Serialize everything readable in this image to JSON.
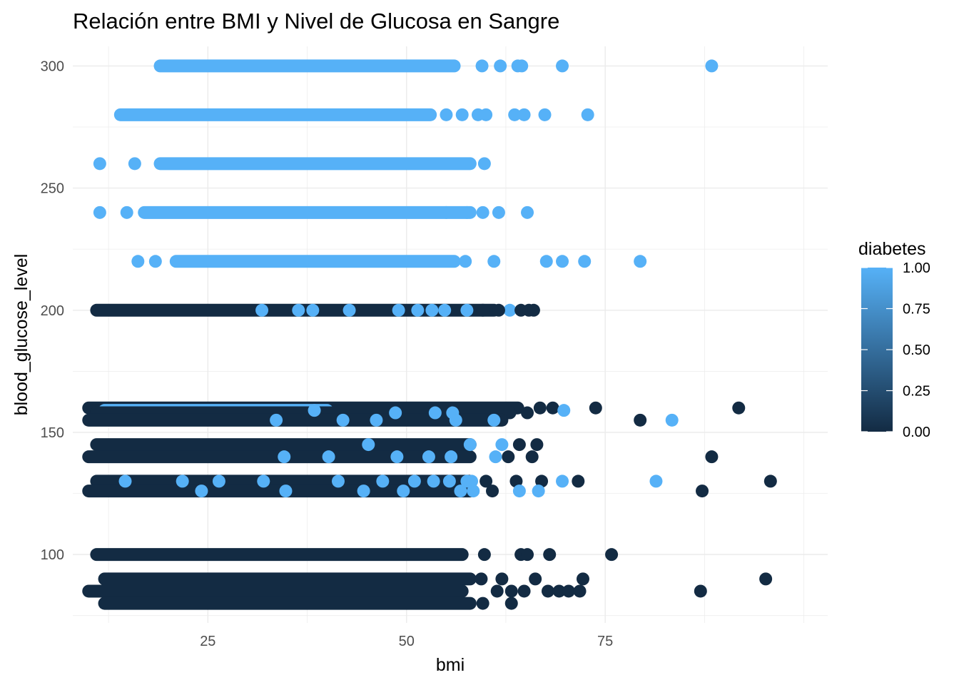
{
  "chart_data": {
    "type": "scatter",
    "title": "Relación entre BMI y Nivel de Glucosa en Sangre",
    "xlabel": "bmi",
    "ylabel": "blood_glucose_level",
    "xlim": [
      8,
      103
    ],
    "ylim": [
      72,
      308
    ],
    "x_ticks": [
      25,
      50,
      75
    ],
    "x_tick_labels": [
      "25",
      "50",
      "75"
    ],
    "y_ticks": [
      100,
      150,
      200,
      250,
      300
    ],
    "y_tick_labels": [
      "100",
      "150",
      "200",
      "250",
      "300"
    ],
    "grid": true,
    "legend": {
      "title": "diabetes",
      "position": "right",
      "type": "continuous",
      "range": [
        0,
        1
      ],
      "ticks": [
        0,
        0.25,
        0.5,
        0.75,
        1
      ],
      "tick_labels": [
        "0.00",
        "0.25",
        "0.50",
        "0.75",
        "1.00"
      ],
      "color_low": "#132B43",
      "color_high": "#56B1F7"
    },
    "colors": {
      "diabetes_0": "#132B43",
      "diabetes_1": "#56B1F7"
    },
    "dense_bands": [
      {
        "y": 300,
        "x_range": [
          19,
          56
        ],
        "diabetes": 1
      },
      {
        "y": 280,
        "x_range": [
          14,
          53
        ],
        "diabetes": 1
      },
      {
        "y": 260,
        "x_range": [
          19,
          58
        ],
        "diabetes": 1
      },
      {
        "y": 240,
        "x_range": [
          17,
          58
        ],
        "diabetes": 1
      },
      {
        "y": 220,
        "x_range": [
          21,
          56
        ],
        "diabetes": 1
      },
      {
        "y": 200,
        "x_range": [
          11,
          61
        ],
        "diabetes": 0
      },
      {
        "y": 160,
        "x_range": [
          10,
          64
        ],
        "diabetes": 0
      },
      {
        "y": 159,
        "x_range": [
          12,
          40
        ],
        "diabetes": 1
      },
      {
        "y": 158,
        "x_range": [
          11,
          63
        ],
        "diabetes": 0
      },
      {
        "y": 155,
        "x_range": [
          10,
          62
        ],
        "diabetes": 0
      },
      {
        "y": 145,
        "x_range": [
          11,
          58
        ],
        "diabetes": 0
      },
      {
        "y": 140,
        "x_range": [
          10,
          58
        ],
        "diabetes": 0
      },
      {
        "y": 130,
        "x_range": [
          11,
          58
        ],
        "diabetes": 0
      },
      {
        "y": 126,
        "x_range": [
          10,
          58
        ],
        "diabetes": 0
      },
      {
        "y": 100,
        "x_range": [
          11,
          57
        ],
        "diabetes": 0
      },
      {
        "y": 90,
        "x_range": [
          12,
          58
        ],
        "diabetes": 0
      },
      {
        "y": 85,
        "x_range": [
          10,
          57
        ],
        "diabetes": 0
      },
      {
        "y": 80,
        "x_range": [
          12,
          58
        ],
        "diabetes": 0
      }
    ],
    "points": [
      {
        "x": 59.5,
        "y": 300,
        "diabetes": 1
      },
      {
        "x": 61.8,
        "y": 300,
        "diabetes": 1
      },
      {
        "x": 64,
        "y": 300,
        "diabetes": 1
      },
      {
        "x": 64.5,
        "y": 300,
        "diabetes": 1
      },
      {
        "x": 69.6,
        "y": 300,
        "diabetes": 1
      },
      {
        "x": 88.4,
        "y": 300,
        "diabetes": 1
      },
      {
        "x": 55,
        "y": 280,
        "diabetes": 1
      },
      {
        "x": 57,
        "y": 280,
        "diabetes": 1
      },
      {
        "x": 59,
        "y": 280,
        "diabetes": 1
      },
      {
        "x": 60,
        "y": 280,
        "diabetes": 1
      },
      {
        "x": 63.6,
        "y": 280,
        "diabetes": 1
      },
      {
        "x": 64.8,
        "y": 280,
        "diabetes": 1
      },
      {
        "x": 67.4,
        "y": 280,
        "diabetes": 1
      },
      {
        "x": 72.8,
        "y": 280,
        "diabetes": 1
      },
      {
        "x": 59.8,
        "y": 260,
        "diabetes": 1
      },
      {
        "x": 11.4,
        "y": 260,
        "diabetes": 1
      },
      {
        "x": 15.8,
        "y": 260,
        "diabetes": 1
      },
      {
        "x": 11.4,
        "y": 240,
        "diabetes": 1
      },
      {
        "x": 14.8,
        "y": 240,
        "diabetes": 1
      },
      {
        "x": 55,
        "y": 240,
        "diabetes": 1
      },
      {
        "x": 57.6,
        "y": 240,
        "diabetes": 1
      },
      {
        "x": 59.6,
        "y": 240,
        "diabetes": 1
      },
      {
        "x": 61.6,
        "y": 240,
        "diabetes": 1
      },
      {
        "x": 65.2,
        "y": 240,
        "diabetes": 1
      },
      {
        "x": 16.2,
        "y": 220,
        "diabetes": 1
      },
      {
        "x": 18.4,
        "y": 220,
        "diabetes": 1
      },
      {
        "x": 57.4,
        "y": 220,
        "diabetes": 1
      },
      {
        "x": 61,
        "y": 220,
        "diabetes": 1
      },
      {
        "x": 67.6,
        "y": 220,
        "diabetes": 1
      },
      {
        "x": 69.6,
        "y": 220,
        "diabetes": 1
      },
      {
        "x": 72.4,
        "y": 220,
        "diabetes": 1
      },
      {
        "x": 79.4,
        "y": 220,
        "diabetes": 1
      },
      {
        "x": 38.2,
        "y": 200,
        "diabetes": 1
      },
      {
        "x": 53.2,
        "y": 200,
        "diabetes": 1
      },
      {
        "x": 57.6,
        "y": 200,
        "diabetes": 1
      },
      {
        "x": 63,
        "y": 200,
        "diabetes": 1
      },
      {
        "x": 59.6,
        "y": 200,
        "diabetes": 0
      },
      {
        "x": 61.6,
        "y": 200,
        "diabetes": 0
      },
      {
        "x": 64.4,
        "y": 200,
        "diabetes": 0
      },
      {
        "x": 65.4,
        "y": 200,
        "diabetes": 0
      },
      {
        "x": 66,
        "y": 200,
        "diabetes": 0
      },
      {
        "x": 66.8,
        "y": 160,
        "diabetes": 0
      },
      {
        "x": 68.4,
        "y": 160,
        "diabetes": 0
      },
      {
        "x": 69.8,
        "y": 159,
        "diabetes": 1
      },
      {
        "x": 73.8,
        "y": 160,
        "diabetes": 0
      },
      {
        "x": 79.4,
        "y": 155,
        "diabetes": 0
      },
      {
        "x": 83.4,
        "y": 155,
        "diabetes": 1
      },
      {
        "x": 91.8,
        "y": 160,
        "diabetes": 0
      },
      {
        "x": 65.2,
        "y": 158,
        "diabetes": 0
      },
      {
        "x": 61,
        "y": 155,
        "diabetes": 1
      },
      {
        "x": 56.2,
        "y": 155,
        "diabetes": 1
      },
      {
        "x": 58,
        "y": 145,
        "diabetes": 1
      },
      {
        "x": 62,
        "y": 145,
        "diabetes": 1
      },
      {
        "x": 64.2,
        "y": 145,
        "diabetes": 0
      },
      {
        "x": 66.4,
        "y": 145,
        "diabetes": 0
      },
      {
        "x": 62.8,
        "y": 140,
        "diabetes": 0
      },
      {
        "x": 65.8,
        "y": 140,
        "diabetes": 0
      },
      {
        "x": 61.2,
        "y": 140,
        "diabetes": 1
      },
      {
        "x": 88.4,
        "y": 140,
        "diabetes": 0
      },
      {
        "x": 60,
        "y": 130,
        "diabetes": 0
      },
      {
        "x": 63.8,
        "y": 130,
        "diabetes": 0
      },
      {
        "x": 67,
        "y": 130,
        "diabetes": 0
      },
      {
        "x": 69.6,
        "y": 130,
        "diabetes": 1
      },
      {
        "x": 71.6,
        "y": 130,
        "diabetes": 0
      },
      {
        "x": 81.4,
        "y": 130,
        "diabetes": 1
      },
      {
        "x": 87.2,
        "y": 126,
        "diabetes": 0
      },
      {
        "x": 95.8,
        "y": 130,
        "diabetes": 0
      },
      {
        "x": 60.8,
        "y": 126,
        "diabetes": 0
      },
      {
        "x": 64.2,
        "y": 126,
        "diabetes": 1
      },
      {
        "x": 66.6,
        "y": 126,
        "diabetes": 1
      },
      {
        "x": 59.8,
        "y": 100,
        "diabetes": 0
      },
      {
        "x": 64.4,
        "y": 100,
        "diabetes": 0
      },
      {
        "x": 65.2,
        "y": 100,
        "diabetes": 0
      },
      {
        "x": 68,
        "y": 100,
        "diabetes": 0
      },
      {
        "x": 75.8,
        "y": 100,
        "diabetes": 0
      },
      {
        "x": 59.4,
        "y": 90,
        "diabetes": 0
      },
      {
        "x": 62,
        "y": 90,
        "diabetes": 0
      },
      {
        "x": 66.2,
        "y": 90,
        "diabetes": 0
      },
      {
        "x": 72.2,
        "y": 90,
        "diabetes": 0
      },
      {
        "x": 95.2,
        "y": 90,
        "diabetes": 0
      },
      {
        "x": 61.4,
        "y": 85,
        "diabetes": 0
      },
      {
        "x": 63.2,
        "y": 85,
        "diabetes": 0
      },
      {
        "x": 64.8,
        "y": 85,
        "diabetes": 0
      },
      {
        "x": 67.8,
        "y": 85,
        "diabetes": 0
      },
      {
        "x": 69.2,
        "y": 85,
        "diabetes": 0
      },
      {
        "x": 70.4,
        "y": 85,
        "diabetes": 0
      },
      {
        "x": 71.8,
        "y": 85,
        "diabetes": 0
      },
      {
        "x": 87,
        "y": 85,
        "diabetes": 0
      },
      {
        "x": 59.6,
        "y": 80,
        "diabetes": 0
      },
      {
        "x": 63.2,
        "y": 80,
        "diabetes": 0
      },
      {
        "x": 33.6,
        "y": 155,
        "diabetes": 1
      },
      {
        "x": 42,
        "y": 155,
        "diabetes": 1
      },
      {
        "x": 46.2,
        "y": 155,
        "diabetes": 1
      },
      {
        "x": 38.4,
        "y": 159,
        "diabetes": 1
      },
      {
        "x": 48.6,
        "y": 158,
        "diabetes": 1
      },
      {
        "x": 53.6,
        "y": 158,
        "diabetes": 1
      },
      {
        "x": 55.8,
        "y": 158,
        "diabetes": 1
      },
      {
        "x": 34.6,
        "y": 140,
        "diabetes": 1
      },
      {
        "x": 40.2,
        "y": 140,
        "diabetes": 1
      },
      {
        "x": 45.2,
        "y": 145,
        "diabetes": 1
      },
      {
        "x": 48.8,
        "y": 140,
        "diabetes": 1
      },
      {
        "x": 52.8,
        "y": 140,
        "diabetes": 1
      },
      {
        "x": 55.6,
        "y": 140,
        "diabetes": 1
      },
      {
        "x": 21.8,
        "y": 130,
        "diabetes": 1
      },
      {
        "x": 26.4,
        "y": 130,
        "diabetes": 1
      },
      {
        "x": 32,
        "y": 130,
        "diabetes": 1
      },
      {
        "x": 41.4,
        "y": 130,
        "diabetes": 1
      },
      {
        "x": 47,
        "y": 130,
        "diabetes": 1
      },
      {
        "x": 51,
        "y": 130,
        "diabetes": 1
      },
      {
        "x": 53.4,
        "y": 130,
        "diabetes": 1
      },
      {
        "x": 55.4,
        "y": 130,
        "diabetes": 1
      },
      {
        "x": 57.6,
        "y": 130,
        "diabetes": 1
      },
      {
        "x": 58.2,
        "y": 130,
        "diabetes": 1
      },
      {
        "x": 14.6,
        "y": 130,
        "diabetes": 1
      },
      {
        "x": 34.8,
        "y": 126,
        "diabetes": 1
      },
      {
        "x": 44.6,
        "y": 126,
        "diabetes": 1
      },
      {
        "x": 49.6,
        "y": 126,
        "diabetes": 1
      },
      {
        "x": 56.8,
        "y": 126,
        "diabetes": 1
      },
      {
        "x": 58.4,
        "y": 126,
        "diabetes": 1
      },
      {
        "x": 24.2,
        "y": 126,
        "diabetes": 1
      },
      {
        "x": 31.8,
        "y": 200,
        "diabetes": 1
      },
      {
        "x": 36.4,
        "y": 200,
        "diabetes": 1
      },
      {
        "x": 42.8,
        "y": 200,
        "diabetes": 1
      },
      {
        "x": 49,
        "y": 200,
        "diabetes": 1
      },
      {
        "x": 51.4,
        "y": 200,
        "diabetes": 1
      },
      {
        "x": 54.8,
        "y": 200,
        "diabetes": 1
      }
    ]
  }
}
